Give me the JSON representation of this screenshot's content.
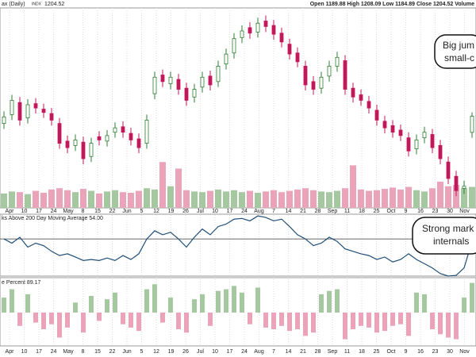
{
  "header": {
    "title": "ax (Daily)",
    "symbol": "INDX",
    "last": "1204.52",
    "stats": "Open 1189.88  High 1208.09  Low 1184.89  Close 1204.52  Volume"
  },
  "date_labels": [
    "Apr",
    "10",
    "17",
    "24",
    "May",
    "8",
    "15",
    "22",
    "Jun",
    "5",
    "12",
    "19",
    "26",
    "Jul",
    "10",
    "17",
    "24",
    "Aug",
    "7",
    "14",
    "21",
    "28",
    "Sep",
    "11",
    "18",
    "25",
    "Oct",
    "9",
    "16",
    "23",
    "30",
    "Nov"
  ],
  "chart_data": [
    {
      "type": "candlestick",
      "up_color": "#2e7d32",
      "down_color": "#c2185b",
      "volume_up_color": "#a5c8a0",
      "volume_down_color": "#eaa3b8",
      "ylim": [
        1130,
        1300
      ],
      "volume_ylim": [
        0,
        80
      ],
      "open": [
        1198,
        1206,
        1217,
        1203,
        1216,
        1211,
        1207,
        1198,
        1182,
        1178,
        1181,
        1168,
        1186,
        1182,
        1190,
        1195,
        1189,
        1184,
        1180,
        1225,
        1242,
        1234,
        1238,
        1230,
        1222,
        1231,
        1241,
        1236,
        1252,
        1262,
        1276,
        1285,
        1281,
        1291,
        1287,
        1280,
        1270,
        1262,
        1250,
        1236,
        1230,
        1241,
        1250,
        1255,
        1230,
        1224,
        1218,
        1210,
        1200,
        1196,
        1192,
        1185,
        1175,
        1185,
        1188,
        1178,
        1163,
        1150,
        1139,
        1189.88
      ],
      "high": [
        1209,
        1224,
        1222,
        1220,
        1221,
        1216,
        1212,
        1203,
        1187,
        1188,
        1186,
        1185,
        1191,
        1192,
        1199,
        1200,
        1194,
        1189,
        1206,
        1245,
        1247,
        1245,
        1243,
        1235,
        1234,
        1245,
        1246,
        1255,
        1266,
        1280,
        1287,
        1290,
        1294,
        1296,
        1292,
        1285,
        1275,
        1267,
        1255,
        1241,
        1245,
        1255,
        1263,
        1260,
        1235,
        1229,
        1223,
        1215,
        1205,
        1201,
        1197,
        1190,
        1188,
        1195,
        1193,
        1183,
        1168,
        1155,
        1146,
        1208.09
      ],
      "low": [
        1193,
        1201,
        1196,
        1198,
        1207,
        1203,
        1196,
        1175,
        1171,
        1173,
        1161,
        1163,
        1178,
        1177,
        1185,
        1185,
        1178,
        1171,
        1175,
        1220,
        1231,
        1229,
        1224,
        1214,
        1217,
        1226,
        1228,
        1231,
        1247,
        1257,
        1271,
        1275,
        1276,
        1281,
        1274,
        1267,
        1256,
        1249,
        1228,
        1224,
        1225,
        1236,
        1245,
        1224,
        1217,
        1214,
        1207,
        1196,
        1189,
        1185,
        1182,
        1168,
        1170,
        1180,
        1171,
        1161,
        1143,
        1132,
        1134,
        1184.89
      ],
      "close": [
        1204,
        1219,
        1201,
        1215,
        1212,
        1208,
        1201,
        1180,
        1176,
        1183,
        1166,
        1180,
        1183,
        1187,
        1194,
        1190,
        1183,
        1176,
        1201,
        1240,
        1236,
        1240,
        1229,
        1219,
        1229,
        1240,
        1233,
        1250,
        1261,
        1275,
        1282,
        1280,
        1289,
        1286,
        1279,
        1272,
        1261,
        1254,
        1233,
        1229,
        1240,
        1250,
        1258,
        1229,
        1222,
        1219,
        1212,
        1201,
        1194,
        1190,
        1187,
        1173,
        1183,
        1190,
        1176,
        1166,
        1148,
        1137,
        1141,
        1204.52
      ],
      "volume": [
        22,
        25,
        24,
        21,
        26,
        23,
        28,
        30,
        27,
        24,
        29,
        26,
        22,
        25,
        27,
        24,
        23,
        26,
        30,
        28,
        70,
        33,
        60,
        27,
        25,
        24,
        26,
        28,
        25,
        27,
        24,
        26,
        23,
        25,
        27,
        24,
        26,
        28,
        30,
        27,
        25,
        24,
        26,
        30,
        65,
        28,
        26,
        27,
        29,
        31,
        28,
        32,
        27,
        25,
        30,
        40,
        33,
        35,
        30,
        32
      ],
      "annotation": [
        "Big jum",
        "small-c"
      ]
    },
    {
      "type": "line",
      "title": "ks Above 200 Day Moving Average 54.00",
      "color": "#1f4e79",
      "ylim": [
        40,
        65
      ],
      "reference": 55,
      "values": [
        55,
        53.3,
        55.7,
        51.7,
        53.3,
        52.3,
        50,
        48.3,
        49,
        47.7,
        46.3,
        46.7,
        46.3,
        47.3,
        46.3,
        48.3,
        46.7,
        49,
        55,
        58.3,
        56.7,
        57.7,
        55,
        51.7,
        55.7,
        59,
        56.7,
        60,
        61,
        63,
        63.3,
        62.3,
        64.3,
        63.7,
        62.3,
        63,
        60,
        56.7,
        55,
        52.3,
        53.3,
        55.7,
        54,
        51,
        50,
        49,
        48.3,
        46.7,
        47.7,
        45.7,
        46.7,
        49,
        46.7,
        45,
        43.3,
        41,
        40,
        40.3,
        43.3,
        54
      ],
      "annotation": [
        "Strong mark",
        "internals"
      ]
    },
    {
      "type": "bar",
      "title": "e Percent 89.17",
      "up_color": "#a5c8a0",
      "down_color": "#eaa3b8",
      "ylim": [
        -100,
        100
      ],
      "values": [
        45,
        70,
        -40,
        55,
        -30,
        -50,
        -35,
        -75,
        -45,
        30,
        -60,
        50,
        -25,
        40,
        60,
        -35,
        -45,
        -55,
        70,
        85,
        -30,
        45,
        -50,
        -60,
        40,
        55,
        -40,
        65,
        70,
        80,
        60,
        -35,
        75,
        -45,
        -50,
        -40,
        -55,
        -50,
        -70,
        -60,
        55,
        65,
        70,
        -80,
        -50,
        -40,
        -45,
        -60,
        -55,
        -40,
        -35,
        -70,
        60,
        55,
        -50,
        -65,
        -75,
        -80,
        45,
        89.17
      ]
    }
  ]
}
